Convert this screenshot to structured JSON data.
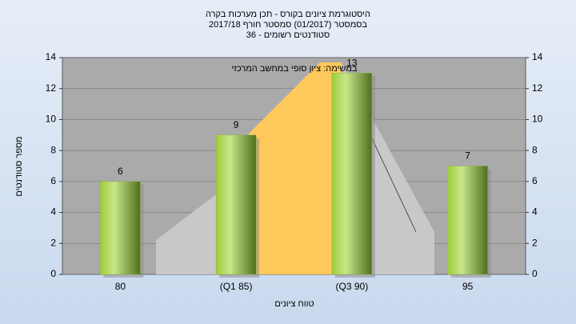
{
  "chart_data": {
    "type": "bar",
    "title": "היסטוגרמת ציונים בקורס - תכן מערכות בקרה",
    "subtitle": "בסמסטר (01/2017)  סמסטר חורף 2017/18",
    "subtitle2": "סטודנטים רשומים - 36",
    "annotation": "במשימה: ציון סופי במחשב המרכזי",
    "x_label": "טווח ציונים",
    "y_label": "מספר סטודנטים",
    "categories": [
      "80",
      "(Q1 85)",
      "(Q3 90)",
      "95"
    ],
    "values": [
      6,
      9,
      13,
      7
    ],
    "ylim": [
      0,
      14
    ],
    "yticks": [
      0,
      2,
      4,
      6,
      8,
      10,
      12,
      14
    ],
    "y2lim": [
      0,
      14
    ],
    "y2ticks": [
      0,
      2,
      4,
      6,
      8,
      10,
      12,
      14
    ],
    "grid": true,
    "color": "#8fb63f"
  }
}
